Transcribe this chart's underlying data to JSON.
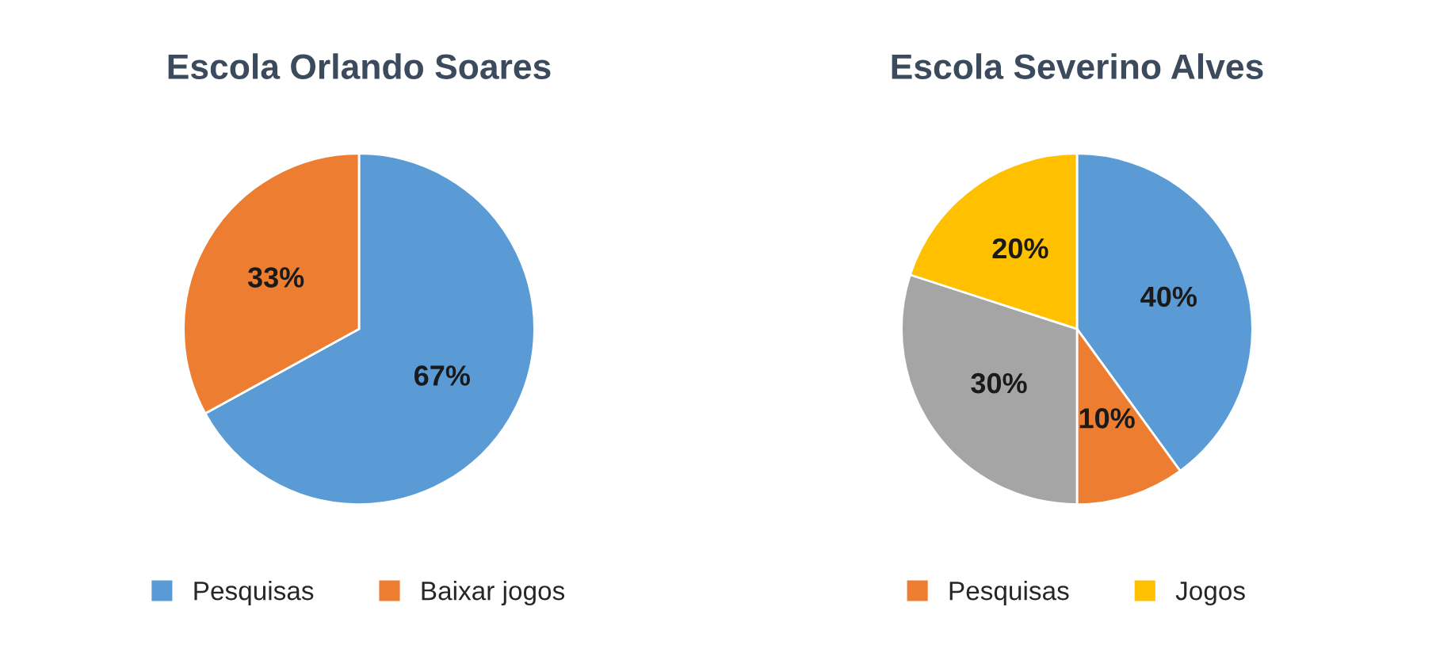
{
  "chart_data": [
    {
      "type": "pie",
      "title": "Escola Orlando Soares",
      "categories": [
        "Pesquisas",
        "Baixar jogos"
      ],
      "values": [
        67,
        33
      ],
      "colors": [
        "#5b9bd5",
        "#ed7d31"
      ],
      "value_labels": [
        "67%",
        "33%"
      ],
      "legend": "bottom"
    },
    {
      "type": "pie",
      "title": "Escola Severino Alves",
      "categories": [
        null,
        "Pesquisas",
        null,
        "Jogos"
      ],
      "values": [
        40,
        10,
        30,
        20
      ],
      "colors": [
        "#5b9bd5",
        "#ed7d31",
        "#a5a5a5",
        "#ffc000"
      ],
      "value_labels": [
        "40%",
        "10%",
        "30%",
        "20%"
      ],
      "legend": "bottom"
    }
  ]
}
